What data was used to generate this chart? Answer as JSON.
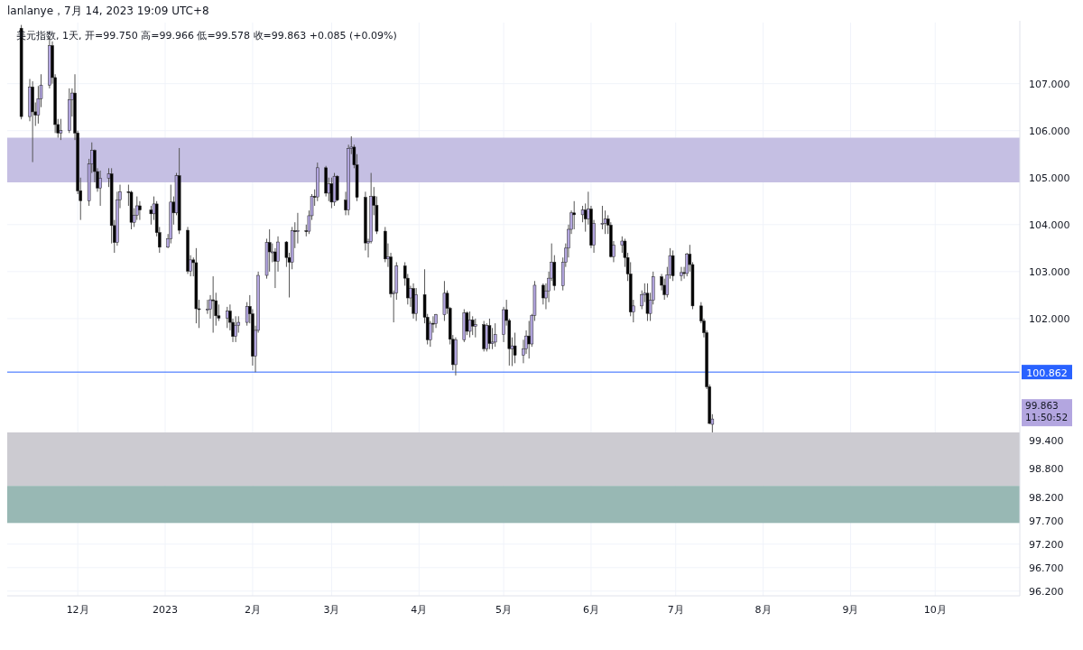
{
  "chart_data": {
    "type": "candlestick",
    "title": "lanlanye，7月 14, 2023 19:09 UTC+8",
    "subtitle": "美元指数, 1天, 开=99.750 高=99.966 低=99.578 收=99.863 +0.085 (+0.09%)",
    "x": [
      "2022-11-11",
      "2022-11-14",
      "2022-11-15",
      "2022-11-16",
      "2022-11-17",
      "2022-11-18",
      "2022-11-21",
      "2022-11-22",
      "2022-11-23",
      "2022-11-24",
      "2022-11-25",
      "2022-11-28",
      "2022-11-29",
      "2022-11-30",
      "2022-12-01",
      "2022-12-02",
      "2022-12-05",
      "2022-12-06",
      "2022-12-07",
      "2022-12-08",
      "2022-12-09",
      "2022-12-12",
      "2022-12-13",
      "2022-12-14",
      "2022-12-15",
      "2022-12-16",
      "2022-12-19",
      "2022-12-20",
      "2022-12-21",
      "2022-12-22",
      "2022-12-23",
      "2022-12-27",
      "2022-12-28",
      "2022-12-29",
      "2022-12-30",
      "2023-01-02",
      "2023-01-03",
      "2023-01-04",
      "2023-01-05",
      "2023-01-06",
      "2023-01-09",
      "2023-01-10",
      "2023-01-11",
      "2023-01-12",
      "2023-01-13",
      "2023-01-16",
      "2023-01-17",
      "2023-01-18",
      "2023-01-19",
      "2023-01-20",
      "2023-01-23",
      "2023-01-24",
      "2023-01-25",
      "2023-01-26",
      "2023-01-27",
      "2023-01-30",
      "2023-01-31",
      "2023-02-01",
      "2023-02-02",
      "2023-02-03",
      "2023-02-06",
      "2023-02-07",
      "2023-02-08",
      "2023-02-09",
      "2023-02-10",
      "2023-02-13",
      "2023-02-14",
      "2023-02-15",
      "2023-02-16",
      "2023-02-17",
      "2023-02-20",
      "2023-02-21",
      "2023-02-22",
      "2023-02-23",
      "2023-02-24",
      "2023-02-27",
      "2023-02-28",
      "2023-03-01",
      "2023-03-02",
      "2023-03-03",
      "2023-03-06",
      "2023-03-07",
      "2023-03-08",
      "2023-03-09",
      "2023-03-10",
      "2023-03-13",
      "2023-03-14",
      "2023-03-15",
      "2023-03-16",
      "2023-03-17",
      "2023-03-20",
      "2023-03-21",
      "2023-03-22",
      "2023-03-23",
      "2023-03-24",
      "2023-03-27",
      "2023-03-28",
      "2023-03-29",
      "2023-03-30",
      "2023-03-31",
      "2023-04-03",
      "2023-04-04",
      "2023-04-05",
      "2023-04-06",
      "2023-04-07",
      "2023-04-10",
      "2023-04-11",
      "2023-04-12",
      "2023-04-13",
      "2023-04-14",
      "2023-04-17",
      "2023-04-18",
      "2023-04-19",
      "2023-04-20",
      "2023-04-21",
      "2023-04-24",
      "2023-04-25",
      "2023-04-26",
      "2023-04-27",
      "2023-04-28",
      "2023-05-01",
      "2023-05-02",
      "2023-05-03",
      "2023-05-04",
      "2023-05-05",
      "2023-05-08",
      "2023-05-09",
      "2023-05-10",
      "2023-05-11",
      "2023-05-12",
      "2023-05-15",
      "2023-05-16",
      "2023-05-17",
      "2023-05-18",
      "2023-05-19",
      "2023-05-22",
      "2023-05-23",
      "2023-05-24",
      "2023-05-25",
      "2023-05-26",
      "2023-05-29",
      "2023-05-30",
      "2023-05-31",
      "2023-06-01",
      "2023-06-02",
      "2023-06-05",
      "2023-06-06",
      "2023-06-07",
      "2023-06-08",
      "2023-06-09",
      "2023-06-12",
      "2023-06-13",
      "2023-06-14",
      "2023-06-15",
      "2023-06-16",
      "2023-06-19",
      "2023-06-20",
      "2023-06-21",
      "2023-06-22",
      "2023-06-23",
      "2023-06-26",
      "2023-06-27",
      "2023-06-28",
      "2023-06-29",
      "2023-06-30",
      "2023-07-03",
      "2023-07-04",
      "2023-07-05",
      "2023-07-06",
      "2023-07-07",
      "2023-07-10",
      "2023-07-11",
      "2023-07-12",
      "2023-07-13",
      "2023-07-14"
    ],
    "ohlc": [
      [
        108.18,
        108.25,
        106.24,
        106.3
      ],
      [
        106.3,
        107.1,
        106.2,
        106.93
      ],
      [
        106.93,
        107.05,
        105.33,
        106.4
      ],
      [
        106.4,
        106.6,
        106.1,
        106.33
      ],
      [
        106.33,
        106.95,
        106.15,
        106.68
      ],
      [
        106.68,
        107.2,
        106.5,
        106.97
      ],
      [
        106.97,
        107.99,
        106.9,
        107.81
      ],
      [
        107.81,
        107.9,
        107.0,
        107.13
      ],
      [
        107.13,
        107.2,
        105.95,
        106.13
      ],
      [
        106.13,
        106.25,
        105.85,
        105.95
      ],
      [
        105.95,
        106.25,
        105.8,
        106.0
      ],
      [
        106.0,
        106.9,
        105.95,
        106.66
      ],
      [
        106.66,
        106.9,
        106.3,
        106.8
      ],
      [
        106.8,
        107.2,
        105.8,
        105.95
      ],
      [
        105.95,
        106.0,
        104.65,
        104.72
      ],
      [
        104.72,
        105.0,
        104.1,
        104.51
      ],
      [
        104.51,
        105.4,
        104.4,
        105.29
      ],
      [
        105.29,
        105.75,
        105.1,
        105.58
      ],
      [
        105.58,
        105.6,
        104.9,
        105.13
      ],
      [
        105.13,
        105.2,
        104.7,
        104.78
      ],
      [
        104.78,
        105.15,
        104.4,
        104.99
      ],
      [
        104.99,
        105.2,
        104.8,
        105.08
      ],
      [
        105.08,
        105.2,
        103.6,
        103.98
      ],
      [
        103.98,
        104.1,
        103.4,
        103.62
      ],
      [
        103.62,
        104.7,
        103.55,
        104.53
      ],
      [
        104.53,
        104.85,
        104.35,
        104.7
      ],
      [
        104.7,
        104.85,
        104.4,
        104.69
      ],
      [
        104.69,
        104.72,
        103.9,
        104.05
      ],
      [
        104.05,
        104.35,
        103.95,
        104.2
      ],
      [
        104.2,
        104.6,
        104.1,
        104.4
      ],
      [
        104.4,
        104.5,
        104.1,
        104.31
      ],
      [
        104.31,
        104.4,
        104.0,
        104.23
      ],
      [
        104.23,
        104.6,
        104.1,
        104.44
      ],
      [
        104.44,
        104.5,
        103.75,
        103.83
      ],
      [
        103.83,
        103.95,
        103.4,
        103.52
      ],
      [
        103.52,
        103.8,
        103.5,
        103.7
      ],
      [
        103.7,
        104.85,
        103.6,
        104.48
      ],
      [
        104.48,
        104.6,
        104.0,
        104.25
      ],
      [
        104.25,
        105.1,
        104.2,
        105.04
      ],
      [
        105.04,
        105.63,
        103.8,
        103.88
      ],
      [
        103.88,
        103.95,
        102.95,
        103.01
      ],
      [
        103.01,
        103.35,
        102.9,
        103.25
      ],
      [
        103.25,
        103.3,
        102.9,
        103.19
      ],
      [
        103.19,
        103.5,
        101.9,
        102.21
      ],
      [
        102.21,
        102.4,
        101.8,
        102.2
      ],
      [
        102.2,
        102.4,
        102.1,
        102.2
      ],
      [
        102.2,
        102.5,
        102.0,
        102.4
      ],
      [
        102.4,
        102.9,
        101.7,
        102.38
      ],
      [
        102.38,
        102.55,
        101.85,
        102.06
      ],
      [
        102.06,
        102.3,
        101.95,
        102.01
      ],
      [
        102.01,
        102.25,
        101.8,
        102.16
      ],
      [
        102.16,
        102.3,
        101.75,
        101.92
      ],
      [
        101.92,
        102.0,
        101.5,
        101.62
      ],
      [
        101.62,
        102.05,
        101.5,
        101.86
      ],
      [
        101.86,
        102.05,
        101.7,
        101.92
      ],
      [
        101.92,
        102.35,
        101.85,
        102.26
      ],
      [
        102.26,
        102.5,
        101.9,
        102.1
      ],
      [
        102.1,
        102.2,
        101.0,
        101.2
      ],
      [
        101.2,
        101.85,
        100.86,
        101.75
      ],
      [
        101.75,
        103.0,
        101.7,
        102.92
      ],
      [
        102.92,
        103.7,
        102.85,
        103.62
      ],
      [
        103.62,
        103.9,
        103.0,
        103.42
      ],
      [
        103.42,
        103.6,
        103.2,
        103.42
      ],
      [
        103.42,
        103.5,
        102.65,
        103.22
      ],
      [
        103.22,
        103.75,
        103.0,
        103.63
      ],
      [
        103.63,
        103.65,
        103.1,
        103.3
      ],
      [
        103.3,
        103.4,
        102.45,
        103.2
      ],
      [
        103.2,
        103.95,
        103.05,
        103.87
      ],
      [
        103.87,
        104.05,
        103.5,
        103.85
      ],
      [
        103.85,
        104.25,
        103.6,
        103.87
      ],
      [
        103.87,
        104.0,
        103.75,
        103.86
      ],
      [
        103.86,
        104.3,
        103.8,
        104.19
      ],
      [
        104.19,
        104.65,
        104.1,
        104.6
      ],
      [
        104.6,
        104.75,
        104.4,
        104.59
      ],
      [
        104.59,
        105.32,
        104.5,
        105.21
      ],
      [
        105.21,
        105.25,
        104.6,
        104.67
      ],
      [
        104.67,
        105.0,
        104.5,
        104.87
      ],
      [
        104.87,
        105.0,
        104.35,
        104.48
      ],
      [
        104.48,
        105.1,
        104.4,
        105.03
      ],
      [
        105.03,
        105.05,
        104.5,
        104.52
      ],
      [
        104.52,
        104.7,
        104.2,
        104.31
      ],
      [
        104.31,
        105.7,
        104.2,
        105.62
      ],
      [
        105.62,
        105.88,
        105.5,
        105.65
      ],
      [
        105.65,
        105.7,
        105.2,
        105.27
      ],
      [
        105.27,
        105.5,
        104.5,
        104.58
      ],
      [
        104.58,
        104.7,
        103.45,
        103.61
      ],
      [
        103.61,
        103.7,
        103.3,
        103.64
      ],
      [
        103.64,
        105.1,
        103.6,
        104.6
      ],
      [
        104.6,
        104.8,
        104.2,
        104.41
      ],
      [
        104.41,
        104.6,
        103.8,
        103.86
      ],
      [
        103.86,
        103.95,
        103.2,
        103.27
      ],
      [
        103.27,
        103.6,
        103.1,
        103.31
      ],
      [
        103.31,
        103.4,
        102.45,
        102.53
      ],
      [
        102.53,
        102.6,
        101.92,
        102.55
      ],
      [
        102.55,
        103.2,
        102.4,
        103.12
      ],
      [
        103.12,
        103.2,
        102.7,
        102.86
      ],
      [
        102.86,
        102.95,
        102.3,
        102.44
      ],
      [
        102.44,
        102.7,
        102.25,
        102.64
      ],
      [
        102.64,
        102.75,
        102.0,
        102.11
      ],
      [
        102.11,
        102.65,
        101.95,
        102.51
      ],
      [
        102.51,
        103.05,
        101.9,
        102.03
      ],
      [
        102.03,
        102.1,
        101.45,
        101.55
      ],
      [
        101.55,
        101.95,
        101.4,
        101.9
      ],
      [
        101.9,
        102.05,
        101.7,
        101.89
      ],
      [
        101.89,
        102.1,
        101.8,
        102.08
      ],
      [
        102.08,
        102.8,
        101.95,
        102.54
      ],
      [
        102.54,
        102.6,
        102.1,
        102.22
      ],
      [
        102.22,
        102.25,
        101.45,
        101.56
      ],
      [
        101.56,
        101.65,
        100.9,
        101.02
      ],
      [
        101.02,
        101.6,
        100.79,
        101.55
      ],
      [
        101.55,
        102.2,
        101.5,
        102.12
      ],
      [
        102.12,
        102.15,
        101.65,
        101.73
      ],
      [
        101.73,
        102.15,
        101.6,
        101.97
      ],
      [
        101.97,
        102.05,
        101.65,
        101.84
      ],
      [
        101.84,
        102.0,
        101.6,
        101.87
      ],
      [
        101.87,
        101.95,
        101.3,
        101.36
      ],
      [
        101.36,
        101.9,
        101.3,
        101.85
      ],
      [
        101.85,
        102.0,
        101.35,
        101.47
      ],
      [
        101.47,
        101.8,
        101.35,
        101.5
      ],
      [
        101.5,
        101.9,
        101.4,
        101.66
      ],
      [
        101.66,
        102.25,
        101.5,
        102.19
      ],
      [
        102.19,
        102.4,
        101.85,
        101.96
      ],
      [
        101.96,
        102.0,
        101.0,
        101.36
      ],
      [
        101.36,
        101.6,
        100.99,
        101.42
      ],
      [
        101.42,
        101.7,
        101.05,
        101.22
      ],
      [
        101.22,
        101.55,
        101.05,
        101.36
      ],
      [
        101.36,
        101.75,
        101.25,
        101.63
      ],
      [
        101.63,
        101.95,
        101.15,
        101.46
      ],
      [
        101.46,
        102.1,
        101.4,
        102.07
      ],
      [
        102.07,
        102.8,
        101.95,
        102.71
      ],
      [
        102.71,
        102.75,
        102.3,
        102.44
      ],
      [
        102.44,
        102.75,
        102.2,
        102.59
      ],
      [
        102.59,
        103.0,
        102.35,
        102.86
      ],
      [
        102.86,
        103.6,
        102.8,
        103.2
      ],
      [
        103.2,
        103.35,
        102.6,
        102.7
      ],
      [
        102.7,
        103.3,
        102.6,
        103.2
      ],
      [
        103.2,
        103.6,
        103.1,
        103.5
      ],
      [
        103.5,
        104.0,
        103.3,
        103.9
      ],
      [
        103.9,
        104.3,
        103.8,
        104.25
      ],
      [
        104.25,
        104.5,
        103.9,
        104.21
      ],
      [
        104.21,
        104.4,
        104.05,
        104.31
      ],
      [
        104.31,
        104.45,
        103.85,
        104.12
      ],
      [
        104.12,
        104.7,
        104.0,
        104.33
      ],
      [
        104.33,
        104.4,
        103.5,
        103.56
      ],
      [
        103.56,
        104.1,
        103.4,
        104.03
      ],
      [
        104.03,
        104.4,
        103.9,
        104.03
      ],
      [
        104.03,
        104.3,
        103.8,
        104.12
      ],
      [
        104.12,
        104.2,
        103.8,
        103.99
      ],
      [
        103.99,
        104.05,
        103.3,
        103.32
      ],
      [
        103.32,
        103.65,
        103.2,
        103.56
      ],
      [
        103.56,
        103.75,
        103.4,
        103.65
      ],
      [
        103.65,
        103.7,
        103.1,
        103.3
      ],
      [
        103.3,
        103.4,
        102.8,
        102.95
      ],
      [
        102.95,
        103.2,
        102.05,
        102.14
      ],
      [
        102.14,
        102.4,
        101.92,
        102.27
      ],
      [
        102.27,
        102.6,
        102.2,
        102.51
      ],
      [
        102.51,
        102.75,
        102.35,
        102.54
      ],
      [
        102.54,
        102.75,
        101.95,
        102.11
      ],
      [
        102.11,
        102.55,
        101.95,
        102.39
      ],
      [
        102.39,
        103.0,
        102.3,
        102.89
      ],
      [
        102.89,
        102.95,
        102.6,
        102.71
      ],
      [
        102.71,
        102.85,
        102.4,
        102.51
      ],
      [
        102.51,
        103.1,
        102.45,
        102.93
      ],
      [
        102.93,
        103.5,
        102.85,
        103.34
      ],
      [
        103.34,
        103.45,
        102.8,
        102.91
      ],
      [
        102.91,
        103.1,
        102.8,
        102.98
      ],
      [
        102.98,
        103.1,
        102.85,
        102.96
      ],
      [
        102.96,
        103.4,
        102.9,
        103.37
      ],
      [
        103.37,
        103.57,
        103.0,
        103.15
      ],
      [
        103.15,
        103.2,
        102.2,
        102.27
      ],
      [
        102.27,
        102.35,
        101.9,
        101.95
      ],
      [
        101.95,
        102.0,
        101.6,
        101.7
      ],
      [
        101.7,
        101.75,
        100.5,
        100.55
      ],
      [
        100.55,
        100.6,
        99.75,
        99.77
      ],
      [
        99.75,
        99.966,
        99.578,
        99.863
      ]
    ],
    "colors": [
      "#000000",
      "#b3a6e0",
      "#000000",
      "#000000",
      "#b3a6e0",
      "#b3a6e0",
      "#b3a6e0",
      "#000000",
      "#000000",
      "#000000",
      "#b3a6e0",
      "#b3a6e0",
      "#b3a6e0",
      "#000000",
      "#000000",
      "#000000",
      "#b3a6e0",
      "#b3a6e0",
      "#000000",
      "#000000",
      "#b3a6e0",
      "#b3a6e0",
      "#000000",
      "#000000",
      "#b3a6e0",
      "#b3a6e0",
      "#000000",
      "#000000",
      "#b3a6e0",
      "#b3a6e0",
      "#000000",
      "#000000",
      "#b3a6e0",
      "#000000",
      "#000000",
      "#b3a6e0",
      "#b3a6e0",
      "#000000",
      "#b3a6e0",
      "#000000",
      "#000000",
      "#b3a6e0",
      "#000000",
      "#000000",
      "#000000",
      "#b3a6e0",
      "#b3a6e0",
      "#000000",
      "#000000",
      "#000000",
      "#b3a6e0",
      "#000000",
      "#000000",
      "#b3a6e0",
      "#b3a6e0",
      "#b3a6e0",
      "#000000",
      "#000000",
      "#b3a6e0",
      "#b3a6e0",
      "#b3a6e0",
      "#000000",
      "#b3a6e0",
      "#000000",
      "#b3a6e0",
      "#000000",
      "#000000",
      "#b3a6e0",
      "#000000",
      "#b3a6e0",
      "#000000",
      "#b3a6e0",
      "#b3a6e0",
      "#000000",
      "#b3a6e0",
      "#000000",
      "#b3a6e0",
      "#000000",
      "#b3a6e0",
      "#000000",
      "#000000",
      "#b3a6e0",
      "#b3a6e0",
      "#000000",
      "#000000",
      "#000000",
      "#b3a6e0",
      "#b3a6e0",
      "#000000",
      "#000000",
      "#000000",
      "#b3a6e0",
      "#000000",
      "#b3a6e0",
      "#b3a6e0",
      "#000000",
      "#000000",
      "#b3a6e0",
      "#000000",
      "#b3a6e0",
      "#000000",
      "#000000",
      "#b3a6e0",
      "#000000",
      "#b3a6e0",
      "#b3a6e0",
      "#000000",
      "#000000",
      "#000000",
      "#b3a6e0",
      "#b3a6e0",
      "#000000",
      "#b3a6e0",
      "#000000",
      "#b3a6e0",
      "#000000",
      "#b3a6e0",
      "#000000",
      "#b3a6e0",
      "#b3a6e0",
      "#b3a6e0",
      "#000000",
      "#000000",
      "#b3a6e0",
      "#000000",
      "#b3a6e0",
      "#b3a6e0",
      "#000000",
      "#b3a6e0",
      "#b3a6e0",
      "#000000",
      "#b3a6e0",
      "#b3a6e0",
      "#b3a6e0",
      "#000000",
      "#b3a6e0",
      "#b3a6e0",
      "#b3a6e0",
      "#b3a6e0",
      "#000000",
      "#b3a6e0",
      "#000000",
      "#b3a6e0",
      "#000000",
      "#b3a6e0",
      "#b3a6e0",
      "#b3a6e0",
      "#000000",
      "#000000",
      "#b3a6e0",
      "#b3a6e0",
      "#000000",
      "#000000",
      "#000000",
      "#b3a6e0",
      "#b3a6e0",
      "#b3a6e0",
      "#000000",
      "#b3a6e0",
      "#b3a6e0",
      "#000000",
      "#000000",
      "#b3a6e0",
      "#b3a6e0",
      "#000000",
      "#b3a6e0",
      "#000000",
      "#b3a6e0",
      "#000000",
      "#000000",
      "#000000",
      "#000000",
      "#000000",
      "#000000",
      "#b3a6e0"
    ],
    "xlim": [
      "2022-11-06",
      "2023-10-31"
    ],
    "xticks": [
      {
        "value": "2022-12-01",
        "label": "12月"
      },
      {
        "value": "2023-01-01",
        "label": "2023"
      },
      {
        "value": "2023-02-01",
        "label": "2月"
      },
      {
        "value": "2023-03-01",
        "label": "3月"
      },
      {
        "value": "2023-04-01",
        "label": "4月"
      },
      {
        "value": "2023-05-01",
        "label": "5月"
      },
      {
        "value": "2023-06-01",
        "label": "6月"
      },
      {
        "value": "2023-07-01",
        "label": "7月"
      },
      {
        "value": "2023-08-01",
        "label": "8月"
      },
      {
        "value": "2023-09-01",
        "label": "9月"
      },
      {
        "value": "2023-10-01",
        "label": "10月"
      }
    ],
    "ylim": [
      96.1,
      108.3
    ],
    "yticks": [
      {
        "value": 107,
        "label": "107.000"
      },
      {
        "value": 106,
        "label": "106.000"
      },
      {
        "value": 105,
        "label": "105.000"
      },
      {
        "value": 104,
        "label": "104.000"
      },
      {
        "value": 103,
        "label": "103.000"
      },
      {
        "value": 102,
        "label": "102.000"
      },
      {
        "value": 99.4,
        "label": "99.400"
      },
      {
        "value": 98.8,
        "label": "98.800"
      },
      {
        "value": 98.2,
        "label": "98.200"
      },
      {
        "value": 97.7,
        "label": "97.700"
      },
      {
        "value": 97.2,
        "label": "97.200"
      },
      {
        "value": 96.7,
        "label": "96.700"
      },
      {
        "value": 96.2,
        "label": "96.200"
      }
    ],
    "grid": true,
    "ref_lines": [
      {
        "axis": "y",
        "value": 100.862,
        "label": "100.862",
        "color": "#2962ff"
      }
    ],
    "bands": [
      {
        "axis": "y",
        "from": 104.9,
        "to": 105.85,
        "color": "#c5bfe3"
      },
      {
        "axis": "y",
        "from": 98.44,
        "to": 99.578,
        "color": "#cccbd1"
      },
      {
        "axis": "y",
        "from": 97.65,
        "to": 98.44,
        "color": "#98b8b4"
      }
    ],
    "annotations": [
      "99.863",
      "11:50:52"
    ]
  }
}
